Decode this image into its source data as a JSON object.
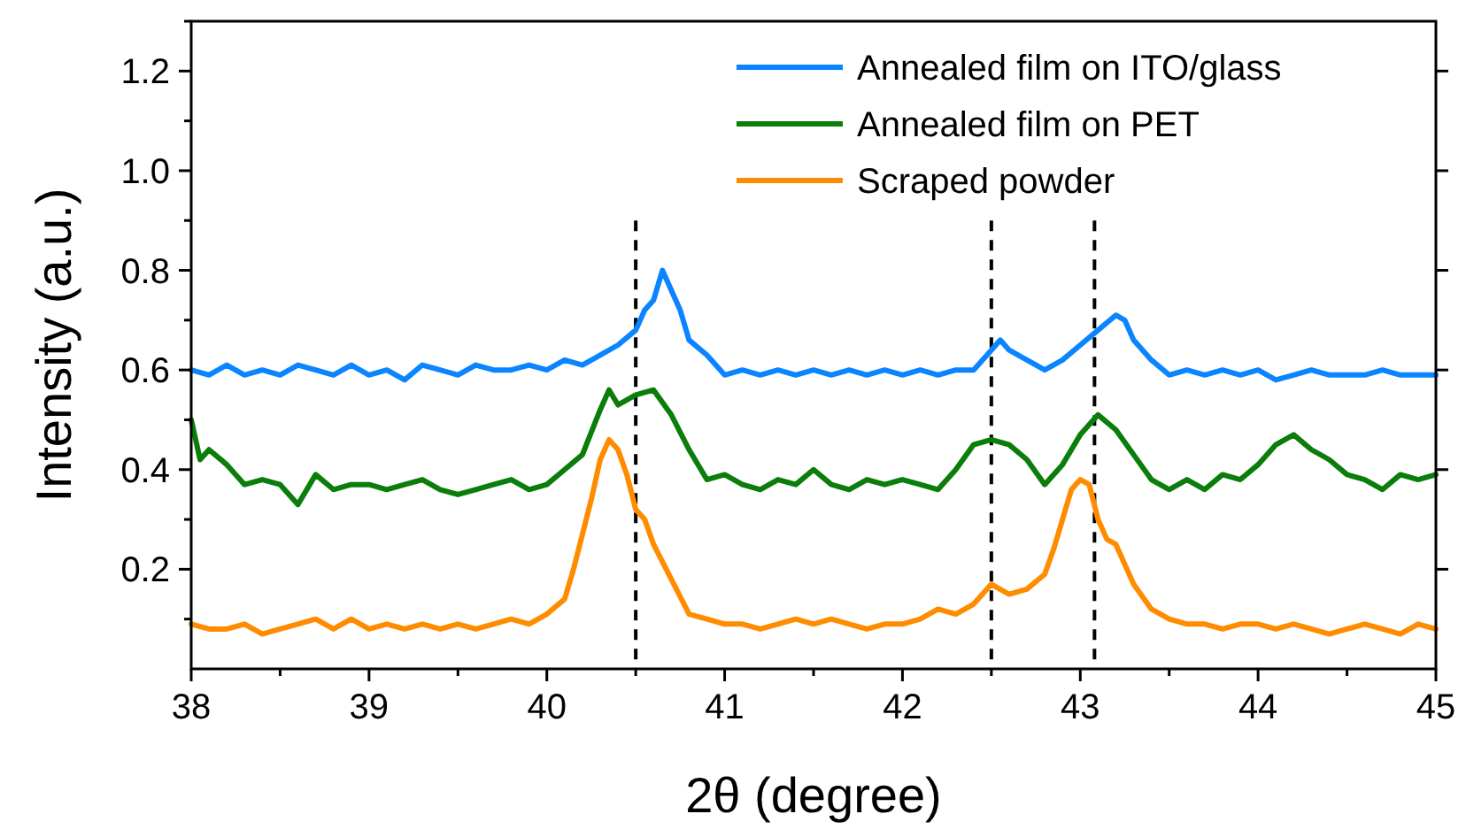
{
  "chart_data": {
    "type": "line",
    "xlabel": "2θ (degree)",
    "ylabel": "Intensity (a.u.)",
    "xlim": [
      38,
      45
    ],
    "ylim": [
      0,
      1.3
    ],
    "xticks": [
      38,
      39,
      40,
      41,
      42,
      43,
      44,
      45
    ],
    "yticks": [
      0.2,
      0.4,
      0.6,
      0.8,
      {
        "value": 1,
        "label": "1.0"
      },
      1.2
    ],
    "grid": false,
    "legend": "top right",
    "marker": "none",
    "line_style": "solid",
    "ref_lines": [
      {
        "axis": "x",
        "value": 40.5,
        "color": "#000000",
        "line_style": "dashed"
      },
      {
        "axis": "x",
        "value": 42.5,
        "color": "#000000",
        "line_style": "dashed"
      },
      {
        "axis": "x",
        "value": 43.08,
        "color": "#000000",
        "line_style": "dashed"
      }
    ],
    "series": [
      {
        "name": "Annealed film on ITO/glass",
        "color": "#0a84ff",
        "x": [
          38,
          38.1,
          38.2,
          38.3,
          38.4,
          38.5,
          38.6,
          38.7,
          38.8,
          38.9,
          39,
          39.1,
          39.2,
          39.3,
          39.4,
          39.5,
          39.6,
          39.7,
          39.8,
          39.9,
          40,
          40.1,
          40.2,
          40.3,
          40.4,
          40.5,
          40.55,
          40.6,
          40.65,
          40.7,
          40.75,
          40.8,
          40.9,
          41,
          41.1,
          41.2,
          41.3,
          41.4,
          41.5,
          41.6,
          41.7,
          41.8,
          41.9,
          42,
          42.1,
          42.2,
          42.3,
          42.4,
          42.5,
          42.55,
          42.6,
          42.7,
          42.8,
          42.9,
          43,
          43.1,
          43.2,
          43.25,
          43.3,
          43.4,
          43.5,
          43.6,
          43.7,
          43.8,
          43.9,
          44,
          44.1,
          44.2,
          44.3,
          44.4,
          44.5,
          44.6,
          44.7,
          44.8,
          44.9,
          45
        ],
        "values": [
          0.6,
          0.59,
          0.61,
          0.59,
          0.6,
          0.59,
          0.61,
          0.6,
          0.59,
          0.61,
          0.59,
          0.6,
          0.58,
          0.61,
          0.6,
          0.59,
          0.61,
          0.6,
          0.6,
          0.61,
          0.6,
          0.62,
          0.61,
          0.63,
          0.65,
          0.68,
          0.72,
          0.74,
          0.8,
          0.76,
          0.72,
          0.66,
          0.63,
          0.59,
          0.6,
          0.59,
          0.6,
          0.59,
          0.6,
          0.59,
          0.6,
          0.59,
          0.6,
          0.59,
          0.6,
          0.59,
          0.6,
          0.6,
          0.64,
          0.66,
          0.64,
          0.62,
          0.6,
          0.62,
          0.65,
          0.68,
          0.71,
          0.7,
          0.66,
          0.62,
          0.59,
          0.6,
          0.59,
          0.6,
          0.59,
          0.6,
          0.58,
          0.59,
          0.6,
          0.59,
          0.59,
          0.59,
          0.6,
          0.59,
          0.59,
          0.59
        ]
      },
      {
        "name": "Annealed film on PET",
        "color": "#0a7d0a",
        "x": [
          38,
          38.05,
          38.1,
          38.2,
          38.3,
          38.4,
          38.5,
          38.6,
          38.7,
          38.8,
          38.9,
          39,
          39.1,
          39.2,
          39.3,
          39.4,
          39.5,
          39.6,
          39.7,
          39.8,
          39.9,
          40,
          40.1,
          40.2,
          40.3,
          40.35,
          40.4,
          40.5,
          40.6,
          40.7,
          40.8,
          40.9,
          41,
          41.1,
          41.2,
          41.3,
          41.4,
          41.5,
          41.6,
          41.7,
          41.8,
          41.9,
          42,
          42.1,
          42.2,
          42.3,
          42.4,
          42.5,
          42.6,
          42.7,
          42.8,
          42.9,
          43,
          43.1,
          43.2,
          43.3,
          43.4,
          43.5,
          43.6,
          43.7,
          43.8,
          43.9,
          44,
          44.1,
          44.2,
          44.3,
          44.4,
          44.5,
          44.6,
          44.7,
          44.8,
          44.9,
          45
        ],
        "values": [
          0.5,
          0.42,
          0.44,
          0.41,
          0.37,
          0.38,
          0.37,
          0.33,
          0.39,
          0.36,
          0.37,
          0.37,
          0.36,
          0.37,
          0.38,
          0.36,
          0.35,
          0.36,
          0.37,
          0.38,
          0.36,
          0.37,
          0.4,
          0.43,
          0.52,
          0.56,
          0.53,
          0.55,
          0.56,
          0.51,
          0.44,
          0.38,
          0.39,
          0.37,
          0.36,
          0.38,
          0.37,
          0.4,
          0.37,
          0.36,
          0.38,
          0.37,
          0.38,
          0.37,
          0.36,
          0.4,
          0.45,
          0.46,
          0.45,
          0.42,
          0.37,
          0.41,
          0.47,
          0.51,
          0.48,
          0.43,
          0.38,
          0.36,
          0.38,
          0.36,
          0.39,
          0.38,
          0.41,
          0.45,
          0.47,
          0.44,
          0.42,
          0.39,
          0.38,
          0.36,
          0.39,
          0.38,
          0.39
        ]
      },
      {
        "name": "Scraped powder",
        "color": "#ff8c00",
        "x": [
          38,
          38.1,
          38.2,
          38.3,
          38.4,
          38.5,
          38.6,
          38.7,
          38.8,
          38.9,
          39,
          39.1,
          39.2,
          39.3,
          39.4,
          39.5,
          39.6,
          39.7,
          39.8,
          39.9,
          40,
          40.1,
          40.15,
          40.2,
          40.25,
          40.3,
          40.35,
          40.4,
          40.45,
          40.5,
          40.55,
          40.6,
          40.7,
          40.8,
          40.9,
          41,
          41.1,
          41.2,
          41.3,
          41.4,
          41.5,
          41.6,
          41.7,
          41.8,
          41.9,
          42,
          42.1,
          42.2,
          42.3,
          42.4,
          42.5,
          42.6,
          42.7,
          42.8,
          42.85,
          42.9,
          42.95,
          43,
          43.05,
          43.1,
          43.15,
          43.2,
          43.3,
          43.4,
          43.5,
          43.6,
          43.7,
          43.8,
          43.9,
          44,
          44.1,
          44.2,
          44.3,
          44.4,
          44.5,
          44.6,
          44.7,
          44.8,
          44.9,
          45
        ],
        "values": [
          0.09,
          0.08,
          0.08,
          0.09,
          0.07,
          0.08,
          0.09,
          0.1,
          0.08,
          0.1,
          0.08,
          0.09,
          0.08,
          0.09,
          0.08,
          0.09,
          0.08,
          0.09,
          0.1,
          0.09,
          0.11,
          0.14,
          0.2,
          0.27,
          0.34,
          0.42,
          0.46,
          0.44,
          0.39,
          0.32,
          0.3,
          0.25,
          0.18,
          0.11,
          0.1,
          0.09,
          0.09,
          0.08,
          0.09,
          0.1,
          0.09,
          0.1,
          0.09,
          0.08,
          0.09,
          0.09,
          0.1,
          0.12,
          0.11,
          0.13,
          0.17,
          0.15,
          0.16,
          0.19,
          0.24,
          0.3,
          0.36,
          0.38,
          0.37,
          0.3,
          0.26,
          0.25,
          0.17,
          0.12,
          0.1,
          0.09,
          0.09,
          0.08,
          0.09,
          0.09,
          0.08,
          0.09,
          0.08,
          0.07,
          0.08,
          0.09,
          0.08,
          0.07,
          0.09,
          0.08
        ]
      }
    ]
  }
}
